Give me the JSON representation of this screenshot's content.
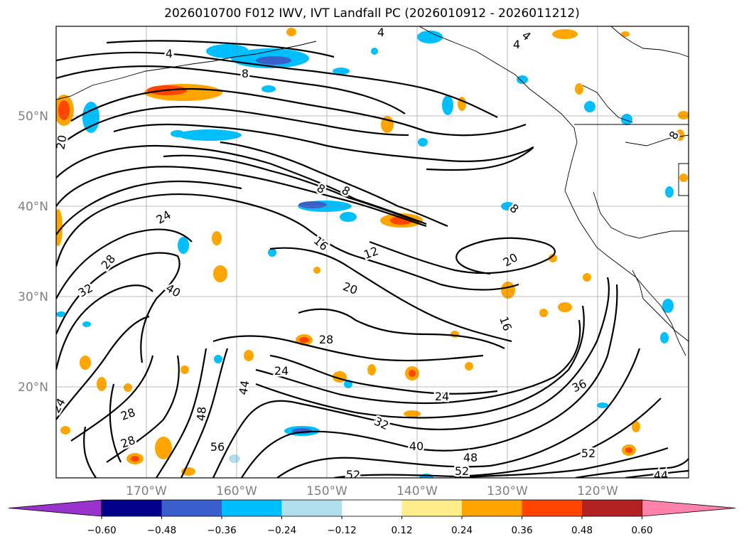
{
  "title": "2026010700 F012 IWV, IVT Landfall PC (2026010912 - 2026011212)",
  "lat_labels": [
    "50°N",
    "40°N",
    "30°N",
    "20°N"
  ],
  "lon_labels": [
    "170°W",
    "160°W",
    "150°W",
    "140°W",
    "130°W",
    "120°W"
  ],
  "colorbar": {
    "colors": [
      "#9a32cd",
      "#00008b",
      "#3a5fcd",
      "#00bfff",
      "#b2dfee",
      "#ffffff",
      "#ffec8b",
      "#ffa500",
      "#ff4500",
      "#b22222",
      "#ff82ab"
    ],
    "tick_labels": [
      "−0.60",
      "−0.48",
      "−0.36",
      "−0.24",
      "−0.12",
      "0.12",
      "0.24",
      "0.36",
      "0.48",
      "0.60"
    ]
  },
  "contour_labels": [
    "4",
    "4",
    "4",
    "4",
    "8",
    "8",
    "8",
    "8",
    "8",
    "20",
    "24",
    "28",
    "32",
    "40",
    "16",
    "12",
    "20",
    "20",
    "16",
    "28",
    "24",
    "24",
    "36",
    "44",
    "48",
    "56",
    "28",
    "28",
    "24",
    "32",
    "40",
    "48",
    "52",
    "52",
    "52",
    "44"
  ],
  "shading_colors": {
    "positive": "#ffa500",
    "positive_strong": "#ff4500",
    "negative": "#00bfff",
    "negative_light": "#b2dfee",
    "negative_strong": "#3a5fcd"
  }
}
